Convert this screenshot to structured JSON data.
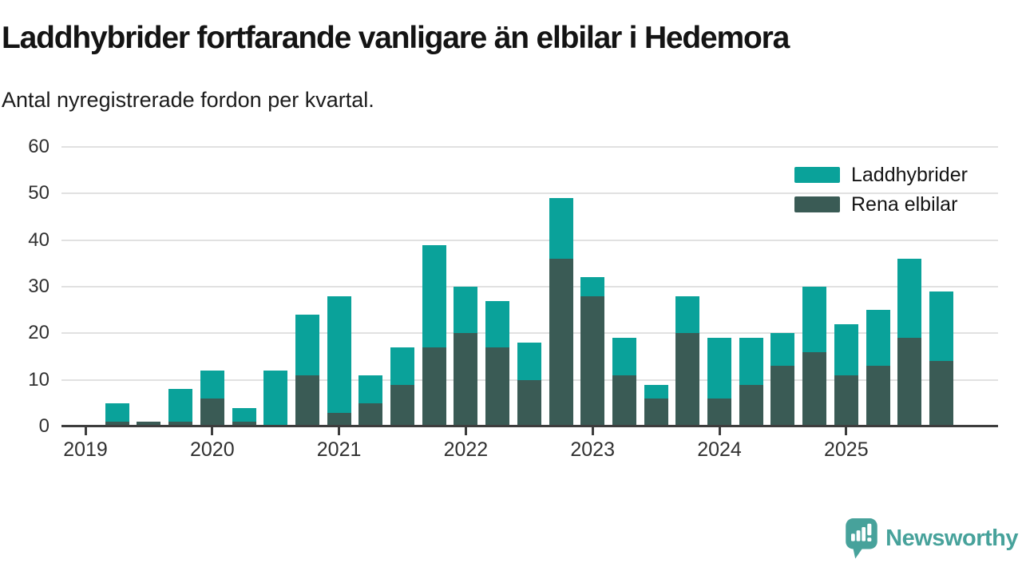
{
  "header": {
    "title": "Laddhybrider fortfarande vanligare än elbilar i Hedemora",
    "subtitle": "Antal nyregistrerade fordon per kvartal."
  },
  "footer": {
    "brand": "Newsworthy",
    "logo_icon": "speech-bubble-with-bar-chart-and-exclamation"
  },
  "colors": {
    "laddhybrider_teal": "#0aa29a",
    "rena_elbilar_dark": "#3a5b55",
    "axis": "#3d3d3d",
    "grid": "#e1e1e1",
    "axis_text": "#303030",
    "brand_teal": "#47a29b",
    "background": "#ffffff"
  },
  "chart_data": {
    "type": "bar",
    "stacked": true,
    "title": "Laddhybrider fortfarande vanligare än elbilar i Hedemora",
    "subtitle": "Antal nyregistrerade fordon per kvartal.",
    "unit": "antal nyregistrerade fordon per kvartal",
    "categories": [
      "2019 Q1",
      "2019 Q2",
      "2019 Q3",
      "2019 Q4",
      "2020 Q1",
      "2020 Q2",
      "2020 Q3",
      "2020 Q4",
      "2021 Q1",
      "2021 Q2",
      "2021 Q3",
      "2021 Q4",
      "2022 Q1",
      "2022 Q2",
      "2022 Q3",
      "2022 Q4",
      "2023 Q1",
      "2023 Q2",
      "2023 Q3",
      "2023 Q4",
      "2024 Q1",
      "2024 Q2",
      "2024 Q3",
      "2024 Q4",
      "2025 Q1",
      "2025 Q2",
      "2025 Q3",
      "2025 Q4"
    ],
    "series": [
      {
        "name": "Laddhybrider",
        "color": "#0aa29a",
        "values": [
          0,
          4,
          0,
          7,
          6,
          3,
          12,
          13,
          25,
          6,
          8,
          22,
          10,
          10,
          8,
          13,
          4,
          8,
          3,
          8,
          13,
          10,
          7,
          14,
          11,
          12,
          17,
          15
        ]
      },
      {
        "name": "Rena elbilar",
        "color": "#3a5b55",
        "values": [
          0,
          1,
          1,
          1,
          6,
          1,
          0,
          11,
          3,
          5,
          9,
          17,
          20,
          17,
          10,
          36,
          28,
          11,
          6,
          20,
          6,
          9,
          13,
          16,
          11,
          13,
          19,
          14
        ]
      }
    ],
    "stacked_totals": [
      0,
      5,
      1,
      8,
      12,
      4,
      12,
      24,
      28,
      11,
      17,
      39,
      30,
      27,
      18,
      49,
      32,
      19,
      9,
      28,
      19,
      19,
      20,
      30,
      22,
      25,
      36,
      29
    ],
    "ylim": [
      0,
      60
    ],
    "yticks": [
      0,
      10,
      20,
      30,
      40,
      50,
      60
    ],
    "xticks": [
      "2019",
      "2020",
      "2021",
      "2022",
      "2023",
      "2024",
      "2025"
    ],
    "legend_position": "top-right",
    "grid": "horizontal",
    "stack_order_bottom_to_top": [
      "Rena elbilar",
      "Laddhybrider"
    ]
  }
}
